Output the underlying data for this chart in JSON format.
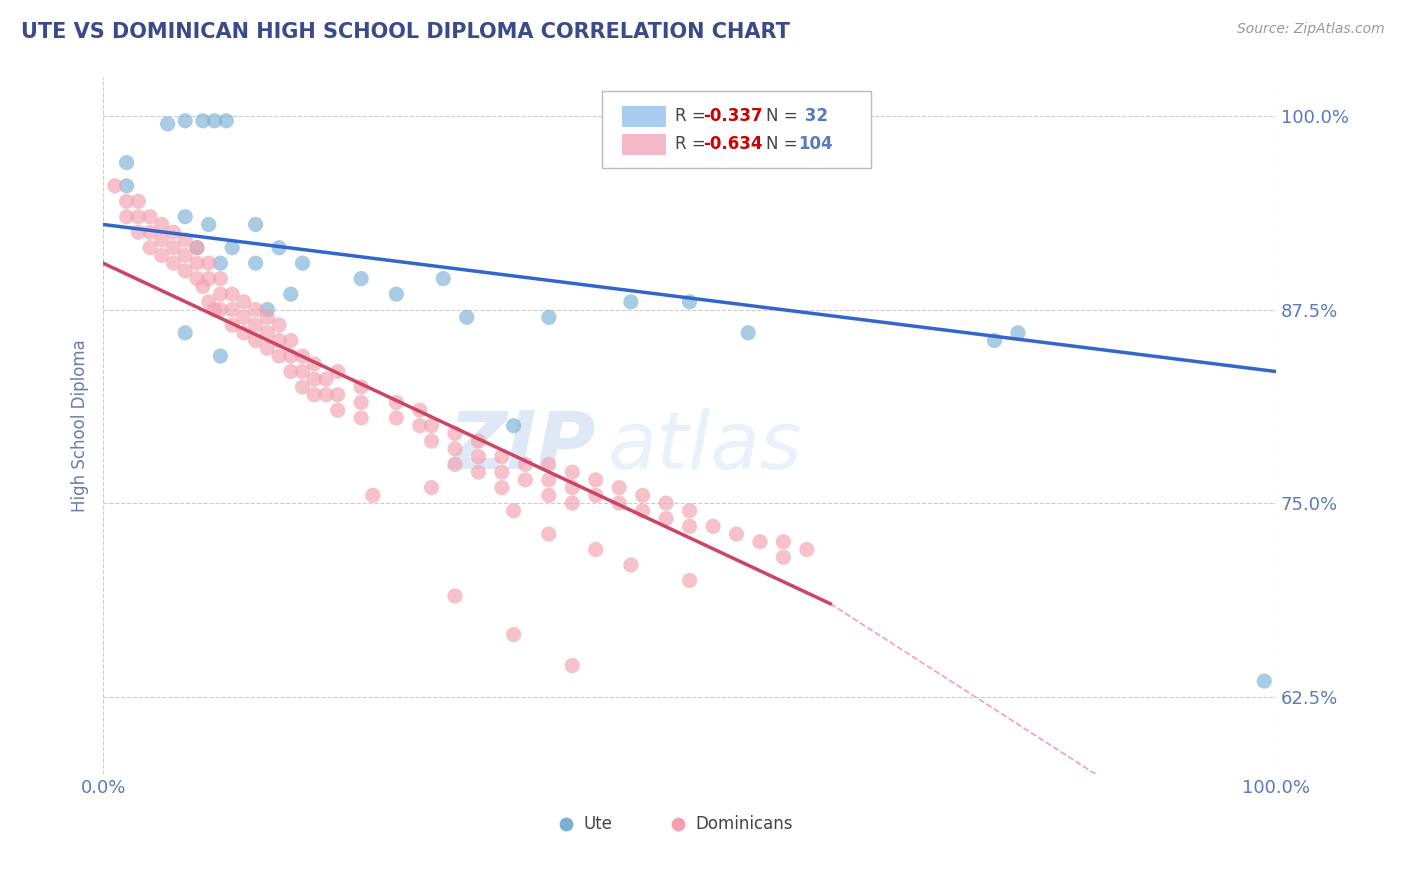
{
  "title": "UTE VS DOMINICAN HIGH SCHOOL DIPLOMA CORRELATION CHART",
  "source": "Source: ZipAtlas.com",
  "ylabel": "High School Diploma",
  "title_color": "#3a4a8a",
  "axis_label_color": "#6a7aaa",
  "tick_label_color": "#5a7abf",
  "background_color": "#ffffff",
  "grid_color": "#cccccc",
  "watermark_zip": "ZIP",
  "watermark_atlas": "atlas",
  "ute_color": "#7bafd4",
  "dominican_color": "#f4a0b0",
  "ute_scatter": [
    [
      0.02,
      0.97
    ],
    [
      0.055,
      0.995
    ],
    [
      0.07,
      0.997
    ],
    [
      0.085,
      0.997
    ],
    [
      0.095,
      0.997
    ],
    [
      0.105,
      0.997
    ],
    [
      0.02,
      0.955
    ],
    [
      0.07,
      0.935
    ],
    [
      0.09,
      0.93
    ],
    [
      0.13,
      0.93
    ],
    [
      0.08,
      0.915
    ],
    [
      0.11,
      0.915
    ],
    [
      0.15,
      0.915
    ],
    [
      0.1,
      0.905
    ],
    [
      0.13,
      0.905
    ],
    [
      0.17,
      0.905
    ],
    [
      0.22,
      0.895
    ],
    [
      0.29,
      0.895
    ],
    [
      0.16,
      0.885
    ],
    [
      0.25,
      0.885
    ],
    [
      0.14,
      0.875
    ],
    [
      0.45,
      0.88
    ],
    [
      0.5,
      0.88
    ],
    [
      0.38,
      0.87
    ],
    [
      0.31,
      0.87
    ],
    [
      0.07,
      0.86
    ],
    [
      0.55,
      0.86
    ],
    [
      0.1,
      0.845
    ],
    [
      0.78,
      0.86
    ],
    [
      0.76,
      0.855
    ],
    [
      0.99,
      0.635
    ],
    [
      0.35,
      0.8
    ]
  ],
  "dominican_scatter": [
    [
      0.01,
      0.955
    ],
    [
      0.02,
      0.945
    ],
    [
      0.02,
      0.935
    ],
    [
      0.03,
      0.945
    ],
    [
      0.03,
      0.935
    ],
    [
      0.03,
      0.925
    ],
    [
      0.04,
      0.935
    ],
    [
      0.04,
      0.925
    ],
    [
      0.04,
      0.915
    ],
    [
      0.05,
      0.93
    ],
    [
      0.05,
      0.92
    ],
    [
      0.05,
      0.91
    ],
    [
      0.06,
      0.925
    ],
    [
      0.06,
      0.915
    ],
    [
      0.06,
      0.905
    ],
    [
      0.07,
      0.92
    ],
    [
      0.07,
      0.91
    ],
    [
      0.07,
      0.9
    ],
    [
      0.08,
      0.915
    ],
    [
      0.08,
      0.905
    ],
    [
      0.08,
      0.895
    ],
    [
      0.085,
      0.89
    ],
    [
      0.09,
      0.905
    ],
    [
      0.09,
      0.895
    ],
    [
      0.09,
      0.88
    ],
    [
      0.095,
      0.875
    ],
    [
      0.1,
      0.895
    ],
    [
      0.1,
      0.885
    ],
    [
      0.1,
      0.875
    ],
    [
      0.11,
      0.885
    ],
    [
      0.11,
      0.875
    ],
    [
      0.11,
      0.865
    ],
    [
      0.12,
      0.88
    ],
    [
      0.12,
      0.87
    ],
    [
      0.12,
      0.86
    ],
    [
      0.13,
      0.875
    ],
    [
      0.13,
      0.865
    ],
    [
      0.13,
      0.855
    ],
    [
      0.14,
      0.87
    ],
    [
      0.14,
      0.86
    ],
    [
      0.14,
      0.85
    ],
    [
      0.15,
      0.865
    ],
    [
      0.15,
      0.855
    ],
    [
      0.15,
      0.845
    ],
    [
      0.16,
      0.855
    ],
    [
      0.16,
      0.845
    ],
    [
      0.16,
      0.835
    ],
    [
      0.17,
      0.845
    ],
    [
      0.17,
      0.835
    ],
    [
      0.17,
      0.825
    ],
    [
      0.18,
      0.84
    ],
    [
      0.18,
      0.83
    ],
    [
      0.18,
      0.82
    ],
    [
      0.19,
      0.83
    ],
    [
      0.19,
      0.82
    ],
    [
      0.2,
      0.835
    ],
    [
      0.2,
      0.82
    ],
    [
      0.2,
      0.81
    ],
    [
      0.22,
      0.825
    ],
    [
      0.22,
      0.815
    ],
    [
      0.22,
      0.805
    ],
    [
      0.25,
      0.815
    ],
    [
      0.25,
      0.805
    ],
    [
      0.27,
      0.81
    ],
    [
      0.27,
      0.8
    ],
    [
      0.28,
      0.8
    ],
    [
      0.28,
      0.79
    ],
    [
      0.3,
      0.795
    ],
    [
      0.3,
      0.785
    ],
    [
      0.3,
      0.775
    ],
    [
      0.32,
      0.79
    ],
    [
      0.32,
      0.78
    ],
    [
      0.32,
      0.77
    ],
    [
      0.34,
      0.78
    ],
    [
      0.34,
      0.77
    ],
    [
      0.34,
      0.76
    ],
    [
      0.36,
      0.775
    ],
    [
      0.36,
      0.765
    ],
    [
      0.38,
      0.775
    ],
    [
      0.38,
      0.765
    ],
    [
      0.38,
      0.755
    ],
    [
      0.4,
      0.77
    ],
    [
      0.4,
      0.76
    ],
    [
      0.4,
      0.75
    ],
    [
      0.42,
      0.765
    ],
    [
      0.42,
      0.755
    ],
    [
      0.44,
      0.76
    ],
    [
      0.44,
      0.75
    ],
    [
      0.46,
      0.755
    ],
    [
      0.46,
      0.745
    ],
    [
      0.48,
      0.75
    ],
    [
      0.48,
      0.74
    ],
    [
      0.5,
      0.745
    ],
    [
      0.5,
      0.735
    ],
    [
      0.52,
      0.735
    ],
    [
      0.54,
      0.73
    ],
    [
      0.56,
      0.725
    ],
    [
      0.58,
      0.725
    ],
    [
      0.58,
      0.715
    ],
    [
      0.6,
      0.72
    ],
    [
      0.28,
      0.76
    ],
    [
      0.35,
      0.745
    ],
    [
      0.38,
      0.73
    ],
    [
      0.42,
      0.72
    ],
    [
      0.45,
      0.71
    ],
    [
      0.5,
      0.7
    ],
    [
      0.23,
      0.755
    ],
    [
      0.3,
      0.69
    ],
    [
      0.35,
      0.665
    ],
    [
      0.4,
      0.645
    ]
  ],
  "ute_line": [
    [
      0.0,
      0.93
    ],
    [
      1.0,
      0.835
    ]
  ],
  "dominican_line_solid": [
    [
      0.0,
      0.905
    ],
    [
      0.62,
      0.685
    ]
  ],
  "dominican_line_dashed": [
    [
      0.62,
      0.685
    ],
    [
      1.0,
      0.5
    ]
  ],
  "xlim": [
    0.0,
    1.0
  ],
  "ylim": [
    0.575,
    1.025
  ],
  "yticks": [
    0.625,
    0.75,
    0.875,
    1.0
  ],
  "yticklabels": [
    "62.5%",
    "75.0%",
    "87.5%",
    "100.0%"
  ],
  "xticks": [
    0.0,
    1.0
  ],
  "xticklabels": [
    "0.0%",
    "100.0%"
  ]
}
